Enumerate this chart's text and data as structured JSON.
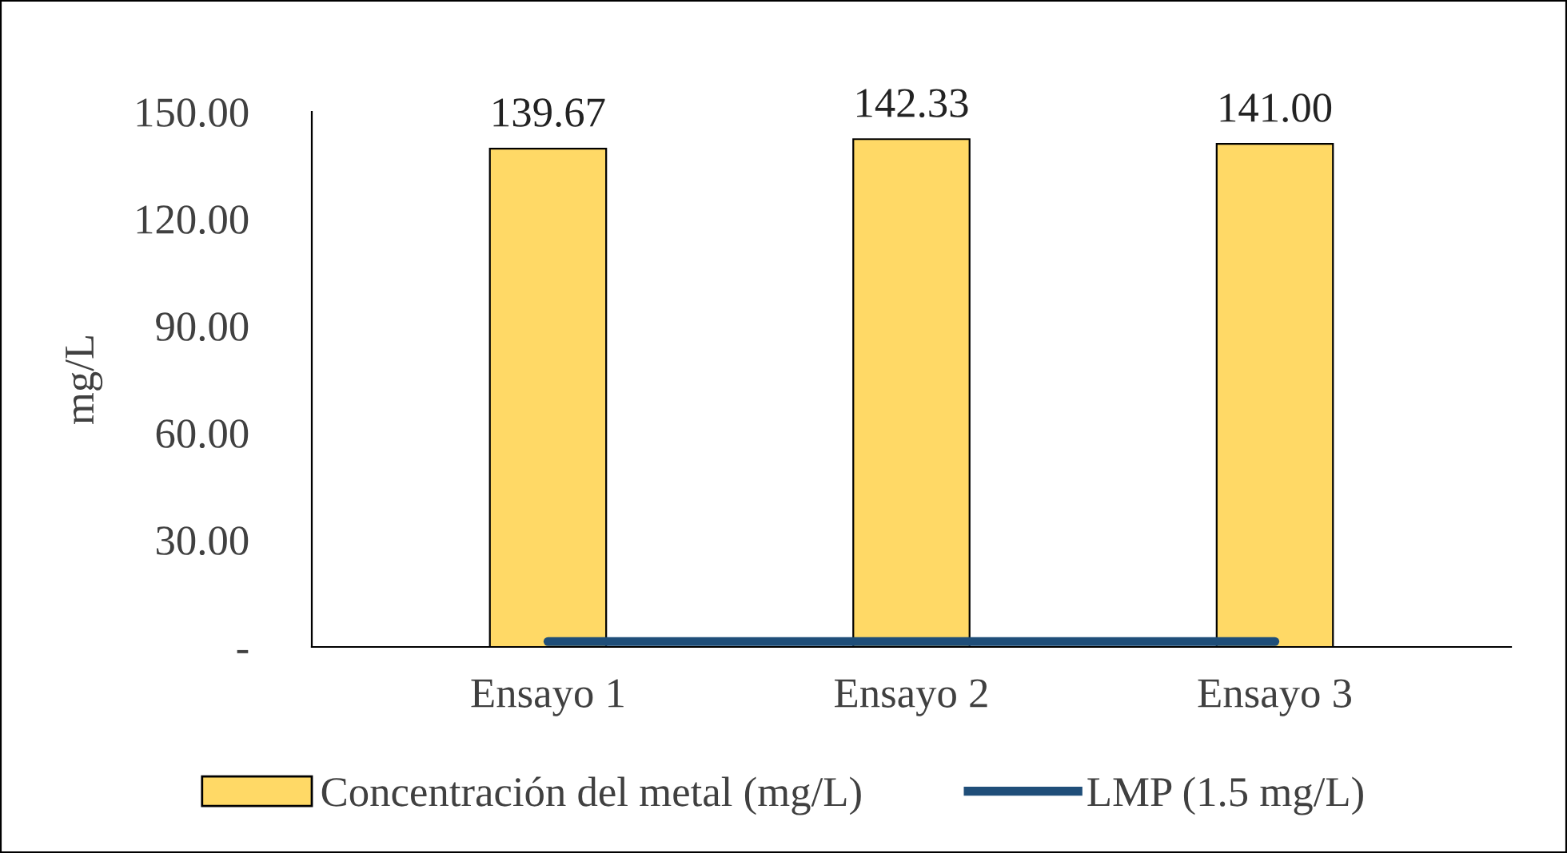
{
  "chart_data": {
    "type": "bar",
    "ylabel": "mg/L",
    "categories": [
      "Ensayo 1",
      "Ensayo 2",
      "Ensayo 3"
    ],
    "series": [
      {
        "name": "Concentración del metal (mg/L)",
        "color": "#ffd966",
        "values": [
          139.67,
          142.33,
          141.0
        ],
        "value_labels": [
          "139.67",
          "142.33",
          "141.00"
        ]
      },
      {
        "name": "LMP (1.5 mg/L)",
        "type": "line",
        "color": "#1f4e79",
        "values": [
          1.5,
          1.5,
          1.5
        ]
      }
    ],
    "ylim": [
      0,
      150
    ],
    "yticks": [
      {
        "value": 0,
        "label": "-"
      },
      {
        "value": 30,
        "label": "30.00"
      },
      {
        "value": 60,
        "label": "60.00"
      },
      {
        "value": 90,
        "label": "90.00"
      },
      {
        "value": 120,
        "label": "120.00"
      },
      {
        "value": 150,
        "label": "150.00"
      }
    ],
    "grid": false,
    "legend": "bottom",
    "marker": "none",
    "line_style": "solid"
  }
}
